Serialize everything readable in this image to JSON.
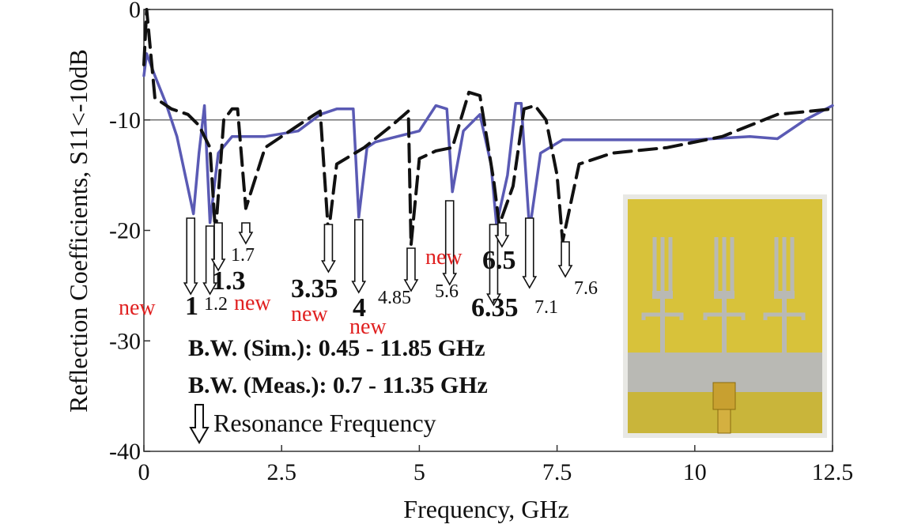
{
  "chart_data": {
    "type": "line",
    "xlabel": "Frequency, GHz",
    "ylabel": "Reflection Coefficients, S11<-10dB",
    "xlim": [
      0,
      12.5
    ],
    "ylim": [
      -40,
      0
    ],
    "x_ticks": [
      {
        "value": 0,
        "label": "0"
      },
      {
        "value": 2.5,
        "label": "2.5"
      },
      {
        "value": 5,
        "label": "5"
      },
      {
        "value": 7.5,
        "label": "7.5"
      },
      {
        "value": 10,
        "label": "10"
      },
      {
        "value": 12.5,
        "label": "12.5"
      }
    ],
    "y_ticks": [
      {
        "value": 0,
        "label": "0"
      },
      {
        "value": -10,
        "label": "-10"
      },
      {
        "value": -20,
        "label": "-20"
      },
      {
        "value": -30,
        "label": "-30"
      },
      {
        "value": -40,
        "label": "-40"
      }
    ],
    "reference_line": -10,
    "series": [
      {
        "style": "solid",
        "color": "#5a5ab4",
        "x": [
          0,
          0.05,
          0.2,
          0.4,
          0.6,
          0.9,
          1.0,
          1.1,
          1.2,
          1.35,
          1.6,
          2.2,
          2.8,
          3.2,
          3.5,
          3.8,
          3.9,
          4.05,
          4.2,
          5.0,
          5.3,
          5.5,
          5.6,
          5.8,
          6.1,
          6.3,
          6.4,
          6.6,
          6.75,
          6.85,
          7.0,
          7.2,
          7.6,
          8.0,
          9.0,
          10.0,
          11.0,
          11.5,
          12.0,
          12.5
        ],
        "y": [
          -6,
          -4,
          -6,
          -8.5,
          -11.5,
          -18.5,
          -13,
          -8.7,
          -19.3,
          -13,
          -11.5,
          -11.5,
          -11,
          -9.5,
          -9,
          -9,
          -18.8,
          -12.5,
          -12,
          -11,
          -8.7,
          -9,
          -16.5,
          -11,
          -9.5,
          -14,
          -19.5,
          -15,
          -8.5,
          -8.5,
          -20,
          -13,
          -11.8,
          -11.8,
          -11.8,
          -11.8,
          -11.5,
          -11.7,
          -10,
          -8.7
        ]
      },
      {
        "style": "dashed",
        "color": "#111111",
        "x": [
          0,
          0.05,
          0.2,
          0.5,
          0.8,
          1.0,
          1.1,
          1.2,
          1.3,
          1.45,
          1.6,
          1.7,
          1.85,
          2.2,
          2.8,
          3.1,
          3.2,
          3.35,
          3.5,
          4.0,
          4.5,
          4.8,
          4.85,
          5.0,
          5.3,
          5.6,
          5.9,
          6.1,
          6.35,
          6.45,
          6.7,
          6.9,
          7.1,
          7.3,
          7.5,
          7.6,
          7.9,
          8.5,
          9.5,
          10.5,
          11.5,
          12.5
        ],
        "y": [
          -5,
          0,
          -8,
          -9,
          -9.5,
          -10.5,
          -11.5,
          -12.5,
          -20.3,
          -10,
          -9,
          -9,
          -18,
          -12.5,
          -10.5,
          -9.5,
          -9.2,
          -20.3,
          -14,
          -12.5,
          -10.5,
          -9.2,
          -21.3,
          -13.5,
          -12.8,
          -12.5,
          -7.5,
          -7.8,
          -15.5,
          -19.5,
          -16,
          -9,
          -8.7,
          -10,
          -15,
          -21,
          -14,
          -13,
          -12.5,
          -11.5,
          -9.5,
          -9
        ]
      }
    ],
    "resonance_markers": [
      {
        "x": 0.85,
        "label": "1",
        "bold": true,
        "new": true
      },
      {
        "x": 1.2,
        "label": "1.2",
        "bold": false,
        "new": false
      },
      {
        "x": 1.35,
        "label": "1.3",
        "bold": true,
        "new": false
      },
      {
        "x": 1.85,
        "label": "1.7",
        "bold": false,
        "new": false
      },
      {
        "x": 3.35,
        "label": "3.35",
        "bold": true,
        "new": true
      },
      {
        "x": 3.9,
        "label": "4",
        "bold": true,
        "new": true
      },
      {
        "x": 4.85,
        "label": "4.85",
        "bold": false,
        "new": false
      },
      {
        "x": 5.55,
        "label": "5.6",
        "bold": false,
        "new": false
      },
      {
        "x": 6.35,
        "label": "6.35",
        "bold": true,
        "new": true
      },
      {
        "x": 6.5,
        "label": "6.5",
        "bold": true,
        "new": true
      },
      {
        "x": 7.0,
        "label": "7.1",
        "bold": false,
        "new": false
      },
      {
        "x": 7.65,
        "label": "7.6",
        "bold": false,
        "new": false
      }
    ],
    "new_word": "new",
    "annotations": [
      "B.W. (Sim.): 0.45 - 11.85 GHz",
      "B.W. (Meas.): 0.7 - 11.35 GHz"
    ],
    "legend_text": "Resonance Frequency"
  },
  "inset": {
    "bg": "#d8c23a",
    "substrate": "#c9b53a",
    "metal": "#b9b9b4"
  }
}
